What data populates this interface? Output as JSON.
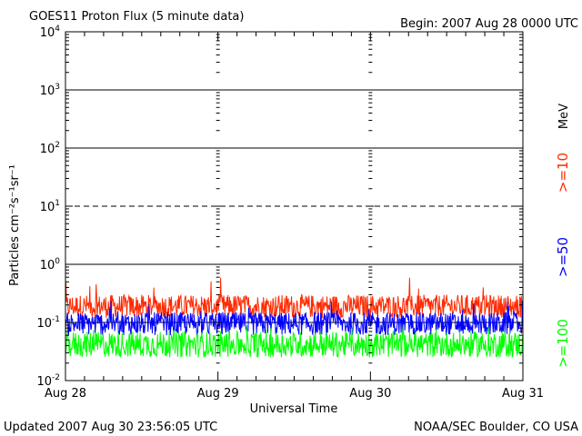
{
  "chart_data": {
    "type": "line",
    "title": "GOES11 Proton Flux (5 minute data)",
    "subtitle": "Begin: 2007 Aug 28 0000 UTC",
    "xlabel": "Universal Time",
    "ylabel": "Particles cm⁻²s⁻¹sr⁻¹",
    "y_scale": "log",
    "ylim": [
      0.01,
      10000
    ],
    "y_ticks": [
      {
        "value": 0.01,
        "base": "10",
        "exp": "-2"
      },
      {
        "value": 0.1,
        "base": "10",
        "exp": "-1"
      },
      {
        "value": 1,
        "base": "10",
        "exp": "0"
      },
      {
        "value": 10,
        "base": "10",
        "exp": "1"
      },
      {
        "value": 100,
        "base": "10",
        "exp": "2"
      },
      {
        "value": 1000,
        "base": "10",
        "exp": "3"
      },
      {
        "value": 10000,
        "base": "10",
        "exp": "4"
      }
    ],
    "x_ticks": [
      "Aug 28",
      "Aug 29",
      "Aug 30",
      "Aug 31"
    ],
    "x_range_days": [
      0,
      3
    ],
    "reference_lines": [
      {
        "value": 1000,
        "style": "solid"
      },
      {
        "value": 100,
        "style": "solid"
      },
      {
        "value": 10,
        "style": "dashed"
      },
      {
        "value": 1,
        "style": "solid"
      },
      {
        "value": 0.1,
        "style": "solid"
      }
    ],
    "energy_unit": "MeV",
    "series": [
      {
        "name": ">=10",
        "color": "#ff2a00",
        "typical_range": [
          0.12,
          0.3
        ],
        "peak": 0.6
      },
      {
        "name": ">=50",
        "color": "#0000ff",
        "typical_range": [
          0.06,
          0.15
        ],
        "peak": 0.25
      },
      {
        "name": ">=100",
        "color": "#00ff00",
        "typical_range": [
          0.025,
          0.07
        ],
        "peak": 0.09
      }
    ]
  },
  "footer": {
    "updated": "Updated 2007 Aug 30 23:56:05 UTC",
    "credit": "NOAA/SEC Boulder, CO USA"
  }
}
